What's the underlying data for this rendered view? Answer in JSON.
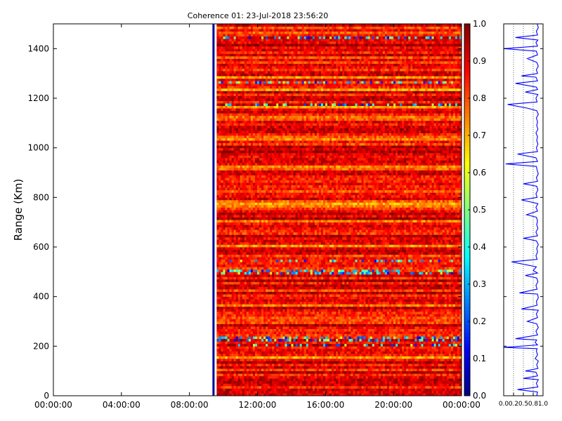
{
  "chart_data": [
    {
      "type": "heatmap",
      "title": "Coherence 01: 23-Jul-2018 23:56:20",
      "ylabel": "Range (Km)",
      "xlabel": "",
      "x_tick_labels": [
        "00:00:00",
        "04:00:00",
        "08:00:00",
        "12:00:00",
        "16:00:00",
        "20:00:00",
        "00:00:00"
      ],
      "x_range_hours": [
        0,
        24
      ],
      "data_start_hours": 9.6,
      "ylim": [
        0,
        1500
      ],
      "y_ticks": [
        0,
        200,
        400,
        600,
        800,
        1000,
        1200,
        1400
      ],
      "colorbar": {
        "colormap": "jet",
        "range": [
          0.0,
          1.0
        ],
        "tick_labels": [
          "0.0",
          "0.1",
          "0.2",
          "0.3",
          "0.4",
          "0.5",
          "0.6",
          "0.7",
          "0.8",
          "0.9",
          "1.0"
        ]
      },
      "typical_value": 0.85,
      "low_coherence_ranges_km": [
        1175,
        1265,
        1445,
        500,
        545,
        205,
        230
      ]
    },
    {
      "type": "line",
      "description": "Coherence profile vs range",
      "x_tick_labels": [
        "0.0",
        "0.2",
        "0.5",
        "0.8",
        "1.0"
      ],
      "xlim": [
        0,
        1
      ],
      "ylim": [
        0,
        1500
      ],
      "series": [
        {
          "color": "#0000ff",
          "points": [
            [
              0.84,
              0
            ],
            [
              0.86,
              15
            ],
            [
              0.35,
              25
            ],
            [
              0.87,
              35
            ],
            [
              0.83,
              50
            ],
            [
              0.88,
              65
            ],
            [
              0.5,
              70
            ],
            [
              0.86,
              80
            ],
            [
              0.82,
              95
            ],
            [
              0.55,
              100
            ],
            [
              0.87,
              110
            ],
            [
              0.84,
              125
            ],
            [
              0.88,
              140
            ],
            [
              0.8,
              150
            ],
            [
              0.86,
              165
            ],
            [
              0.83,
              180
            ],
            [
              0.85,
              190
            ],
            [
              0.0,
              195
            ],
            [
              0.86,
              205
            ],
            [
              0.8,
              215
            ],
            [
              0.84,
              225
            ],
            [
              0.3,
              230
            ],
            [
              0.86,
              245
            ],
            [
              0.82,
              260
            ],
            [
              0.88,
              275
            ],
            [
              0.84,
              290
            ],
            [
              0.6,
              300
            ],
            [
              0.86,
              315
            ],
            [
              0.83,
              330
            ],
            [
              0.88,
              345
            ],
            [
              0.45,
              350
            ],
            [
              0.85,
              365
            ],
            [
              0.83,
              380
            ],
            [
              0.88,
              395
            ],
            [
              0.86,
              410
            ],
            [
              0.4,
              415
            ],
            [
              0.85,
              430
            ],
            [
              0.82,
              445
            ],
            [
              0.87,
              460
            ],
            [
              0.84,
              475
            ],
            [
              0.55,
              485
            ],
            [
              0.86,
              495
            ],
            [
              0.75,
              505
            ],
            [
              0.83,
              520
            ],
            [
              0.2,
              540
            ],
            [
              0.85,
              550
            ],
            [
              0.82,
              565
            ],
            [
              0.86,
              580
            ],
            [
              0.84,
              595
            ],
            [
              0.88,
              610
            ],
            [
              0.83,
              625
            ],
            [
              0.5,
              635
            ],
            [
              0.86,
              645
            ],
            [
              0.82,
              660
            ],
            [
              0.87,
              675
            ],
            [
              0.84,
              690
            ],
            [
              0.86,
              705
            ],
            [
              0.83,
              720
            ],
            [
              0.58,
              730
            ],
            [
              0.86,
              745
            ],
            [
              0.82,
              760
            ],
            [
              0.87,
              775
            ],
            [
              0.45,
              790
            ],
            [
              0.85,
              800
            ],
            [
              0.82,
              815
            ],
            [
              0.87,
              830
            ],
            [
              0.84,
              845
            ],
            [
              0.5,
              855
            ],
            [
              0.86,
              865
            ],
            [
              0.83,
              880
            ],
            [
              0.88,
              895
            ],
            [
              0.85,
              910
            ],
            [
              0.83,
              925
            ],
            [
              0.05,
              935
            ],
            [
              0.86,
              945
            ],
            [
              0.82,
              960
            ],
            [
              0.35,
              975
            ],
            [
              0.86,
              985
            ],
            [
              0.83,
              1000
            ],
            [
              0.87,
              1015
            ],
            [
              0.84,
              1030
            ],
            [
              0.86,
              1045
            ],
            [
              0.82,
              1060
            ],
            [
              0.87,
              1075
            ],
            [
              0.84,
              1090
            ],
            [
              0.86,
              1105
            ],
            [
              0.83,
              1120
            ],
            [
              0.88,
              1135
            ],
            [
              0.84,
              1150
            ],
            [
              0.6,
              1160
            ],
            [
              0.1,
              1175
            ],
            [
              0.85,
              1185
            ],
            [
              0.82,
              1200
            ],
            [
              0.87,
              1215
            ],
            [
              0.55,
              1225
            ],
            [
              0.86,
              1235
            ],
            [
              0.83,
              1245
            ],
            [
              0.3,
              1260
            ],
            [
              0.86,
              1270
            ],
            [
              0.82,
              1285
            ],
            [
              0.45,
              1290
            ],
            [
              0.86,
              1300
            ],
            [
              0.83,
              1315
            ],
            [
              0.88,
              1330
            ],
            [
              0.84,
              1345
            ],
            [
              0.6,
              1360
            ],
            [
              0.86,
              1375
            ],
            [
              0.83,
              1390
            ],
            [
              0.0,
              1400
            ],
            [
              0.86,
              1410
            ],
            [
              0.82,
              1425
            ],
            [
              0.87,
              1435
            ],
            [
              0.3,
              1445
            ],
            [
              0.86,
              1455
            ],
            [
              0.83,
              1470
            ],
            [
              0.88,
              1485
            ],
            [
              0.85,
              1500
            ]
          ]
        }
      ]
    }
  ]
}
